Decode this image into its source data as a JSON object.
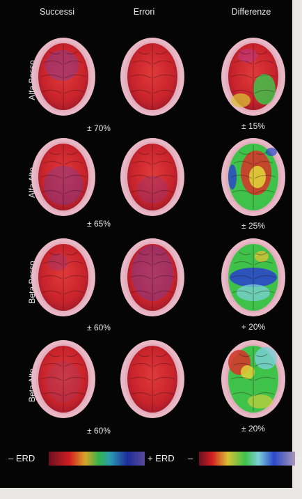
{
  "columns": [
    "Successi",
    "Errori",
    "Differenze"
  ],
  "rows": [
    {
      "label": "Alfa Basso",
      "successi_pct": "± 70%",
      "differenze_pct": "± 15%"
    },
    {
      "label": "Alfa Alto",
      "successi_pct": "± 65%",
      "differenze_pct": "± 25%"
    },
    {
      "label": "Beta Basso",
      "successi_pct": "± 60%",
      "differenze_pct": "+ 20%"
    },
    {
      "label": "Beta Alto",
      "successi_pct": "± 60%",
      "differenze_pct": "± 20%"
    }
  ],
  "scale": {
    "left_minus": "– ERD",
    "left_plus": "+ ERD",
    "right_minus": "–",
    "right_plus": "+"
  },
  "colors": {
    "background": "#050505",
    "scalp": "#e9b8c6",
    "erd_red": "#c8232b",
    "positive_green": "#3fc24a",
    "negative_blue": "#2a48c8"
  },
  "icons": [
    "brain-topography-map"
  ]
}
